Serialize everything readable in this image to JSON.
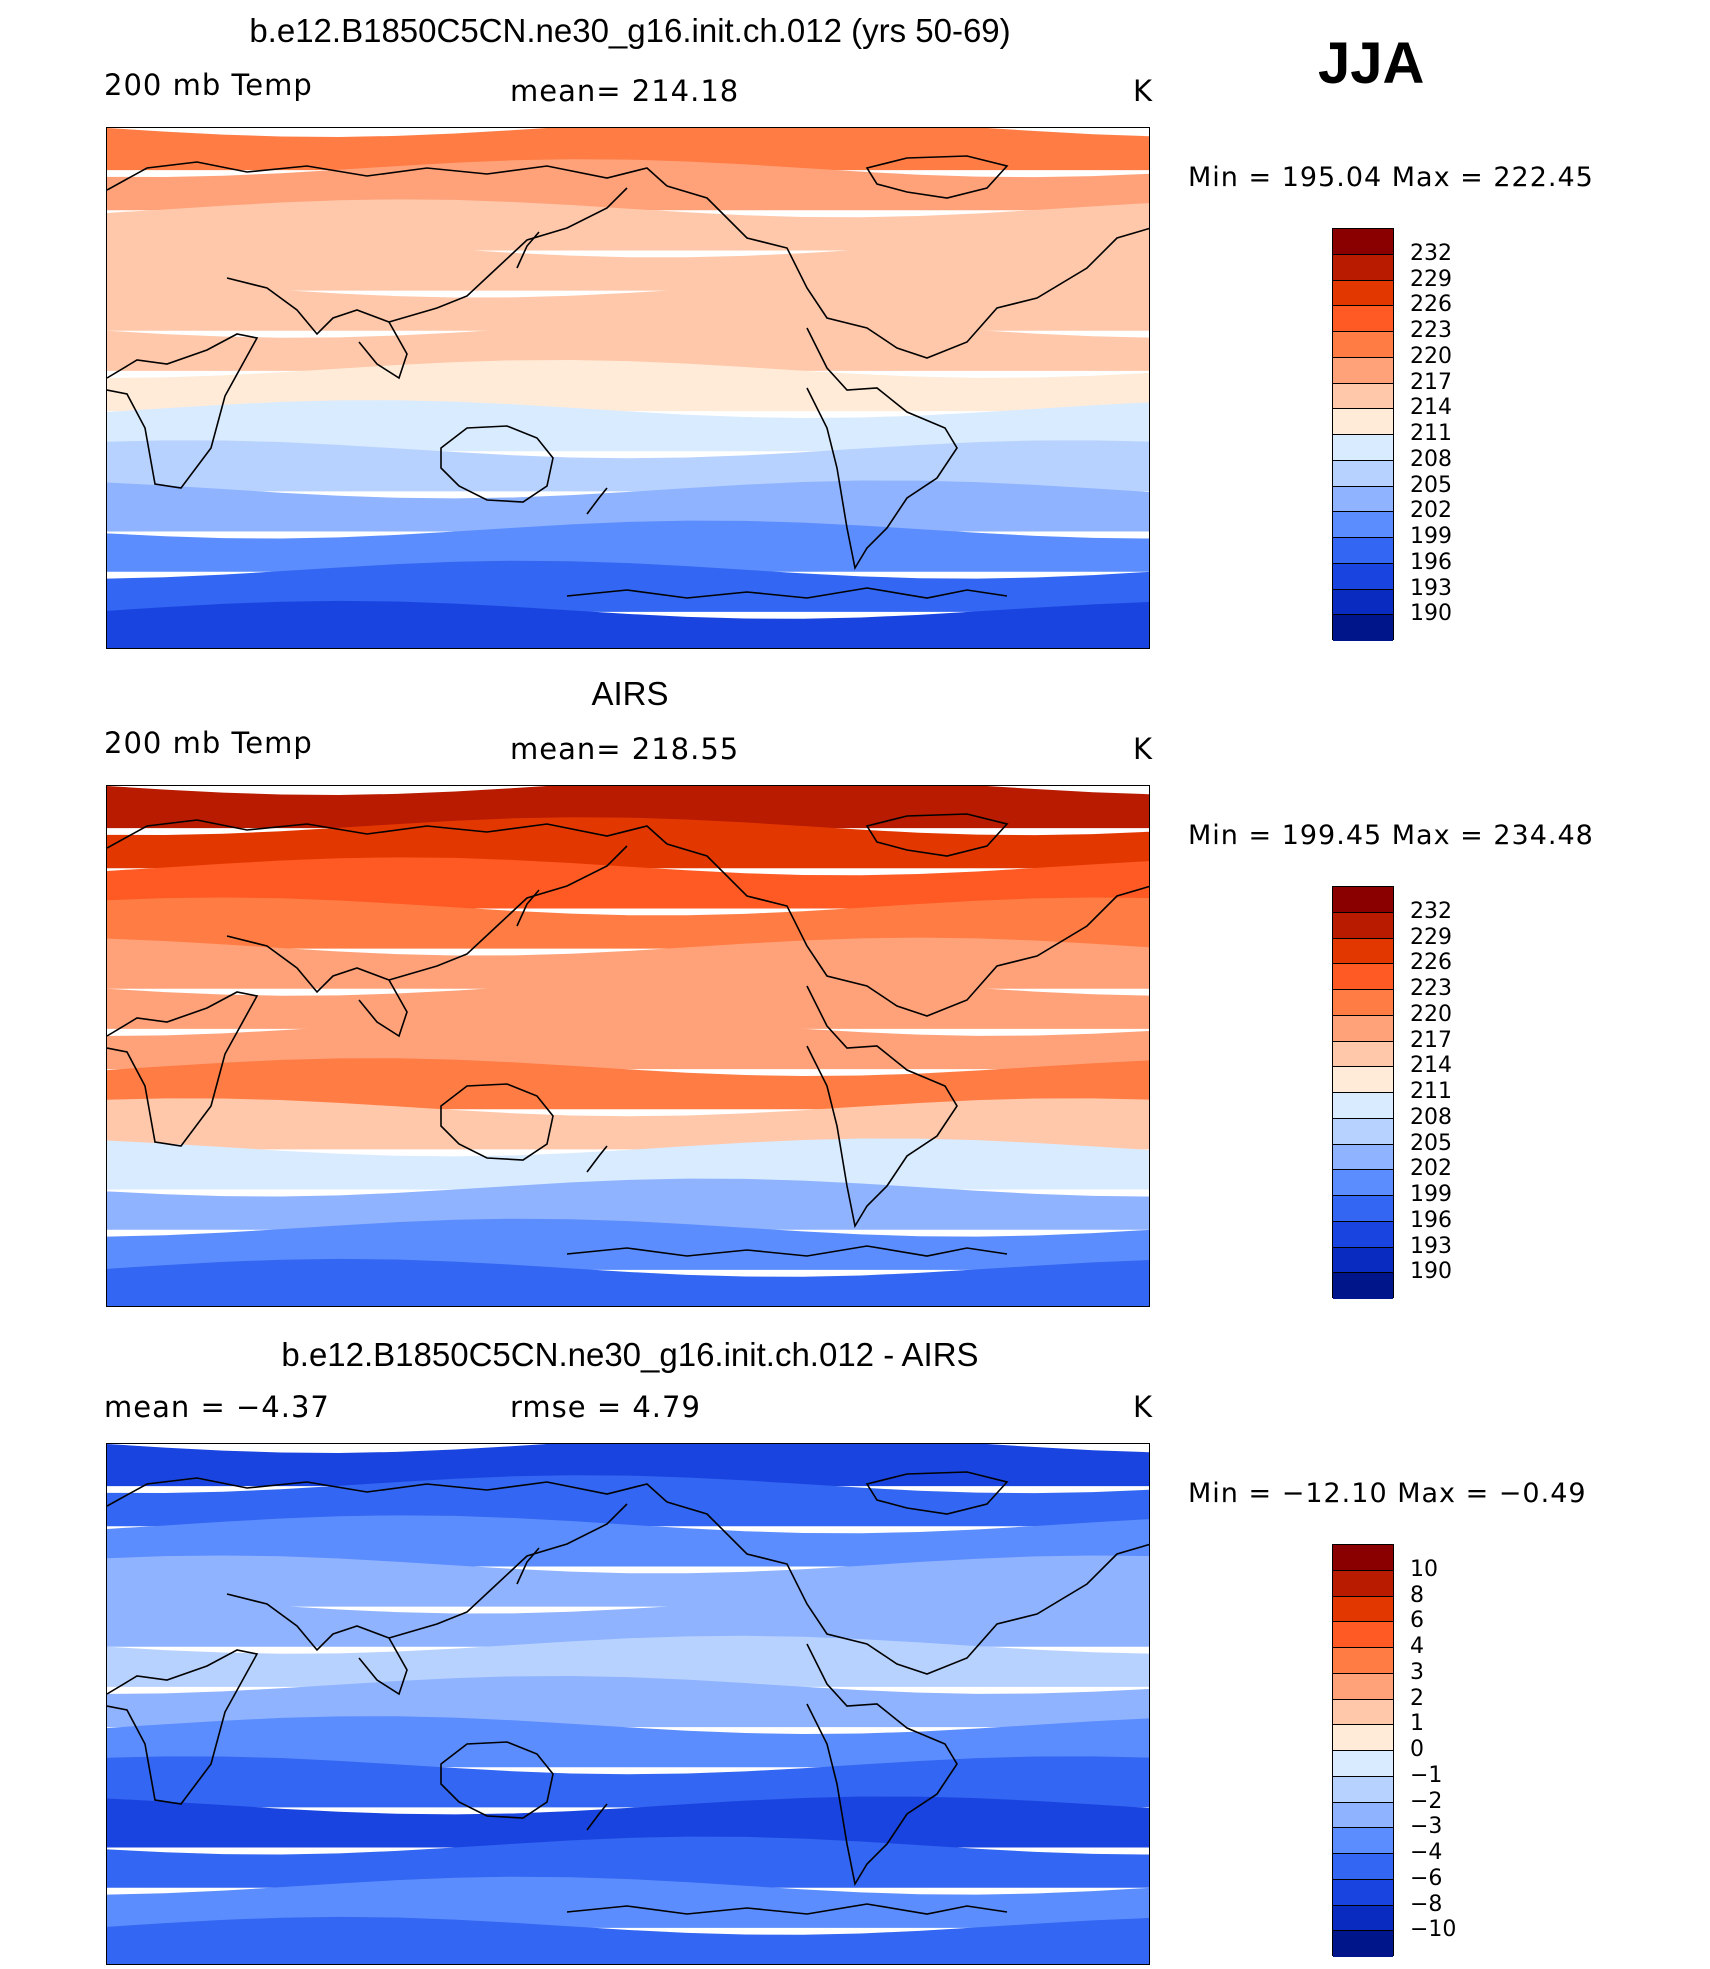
{
  "season": "JJA",
  "colorbar_temp": {
    "colors": [
      "#8a0000",
      "#b81b00",
      "#e33700",
      "#ff5a24",
      "#ff7d45",
      "#ffa27a",
      "#ffc8aa",
      "#ffebd8",
      "#d9ebff",
      "#b8d2ff",
      "#8fb3ff",
      "#5c8dff",
      "#3366f2",
      "#1a44e0",
      "#0a2bc0",
      "#00158a"
    ],
    "tick_labels": [
      "232",
      "229",
      "226",
      "223",
      "220",
      "217",
      "214",
      "211",
      "208",
      "205",
      "202",
      "199",
      "196",
      "193",
      "190"
    ]
  },
  "colorbar_diff": {
    "colors": [
      "#8a0000",
      "#b81b00",
      "#e33700",
      "#ff5a24",
      "#ff7d45",
      "#ffa27a",
      "#ffc8aa",
      "#ffebd8",
      "#d9ebff",
      "#b8d2ff",
      "#8fb3ff",
      "#5c8dff",
      "#3366f2",
      "#1a44e0",
      "#0a2bc0",
      "#00158a"
    ],
    "tick_labels": [
      "10",
      "8",
      "6",
      "4",
      "3",
      "2",
      "1",
      "0",
      "−1",
      "−2",
      "−3",
      "−4",
      "−6",
      "−8",
      "−10"
    ]
  },
  "panels": [
    {
      "title": "b.e12.B1850C5CN.ne30_g16.init.ch.012 (yrs 50-69)",
      "left_label": "200 mb Temp",
      "center_label": "mean=  214.18",
      "units": "K",
      "min_max": "Min  =  195.04  Max  =  222.45",
      "bands": [
        "#ff7d45",
        "#ffa27a",
        "#ffc8aa",
        "#ffc8aa",
        "#ffc8aa",
        "#ffc8aa",
        "#ffebd8",
        "#d9ebff",
        "#b8d2ff",
        "#8fb3ff",
        "#5c8dff",
        "#3366f2",
        "#1a44e0"
      ]
    },
    {
      "title": "AIRS",
      "left_label": "200 mb Temp",
      "center_label": "mean=  218.55",
      "units": "K",
      "min_max": "Min  =  199.45  Max  =  234.48",
      "bands": [
        "#b81b00",
        "#e33700",
        "#ff5a24",
        "#ff7d45",
        "#ffa27a",
        "#ffa27a",
        "#ffa27a",
        "#ff7d45",
        "#ffc8aa",
        "#d9ebff",
        "#8fb3ff",
        "#5c8dff",
        "#3366f2"
      ]
    },
    {
      "title": "b.e12.B1850C5CN.ne30_g16.init.ch.012 - AIRS",
      "left_label": "mean  =    −4.37",
      "center_label": "rmse  =      4.79",
      "units": "K",
      "min_max": "Min  =  −12.10  Max  =    −0.49",
      "bands": [
        "#1a44e0",
        "#3366f2",
        "#5c8dff",
        "#8fb3ff",
        "#8fb3ff",
        "#b8d2ff",
        "#8fb3ff",
        "#5c8dff",
        "#3366f2",
        "#1a44e0",
        "#3366f2",
        "#5c8dff",
        "#3366f2"
      ]
    }
  ]
}
